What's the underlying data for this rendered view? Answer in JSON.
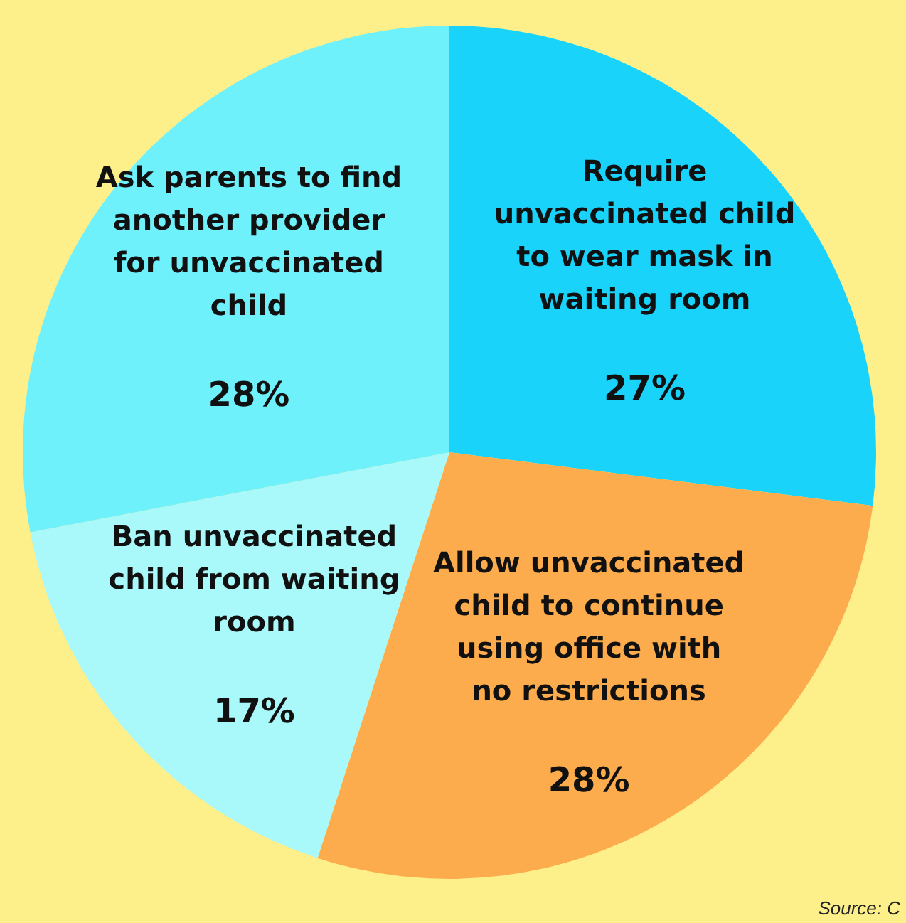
{
  "chart_data": {
    "type": "pie",
    "categories": [
      "Require unvaccinated child to wear mask in waiting room",
      "Allow unvaccinated child to continue using office with no restrictions",
      "Ban unvaccinated child from waiting room",
      "Ask parents to find another provider for unvaccinated child"
    ],
    "values": [
      27,
      28,
      17,
      28
    ],
    "colors": [
      "#19d3fb",
      "#fcab4d",
      "#a9f8fa",
      "#6ef1fb"
    ],
    "value_labels": [
      "27%",
      "28%",
      "17%",
      "28%"
    ],
    "annotations": [
      "Source: C"
    ],
    "legend": false
  }
}
